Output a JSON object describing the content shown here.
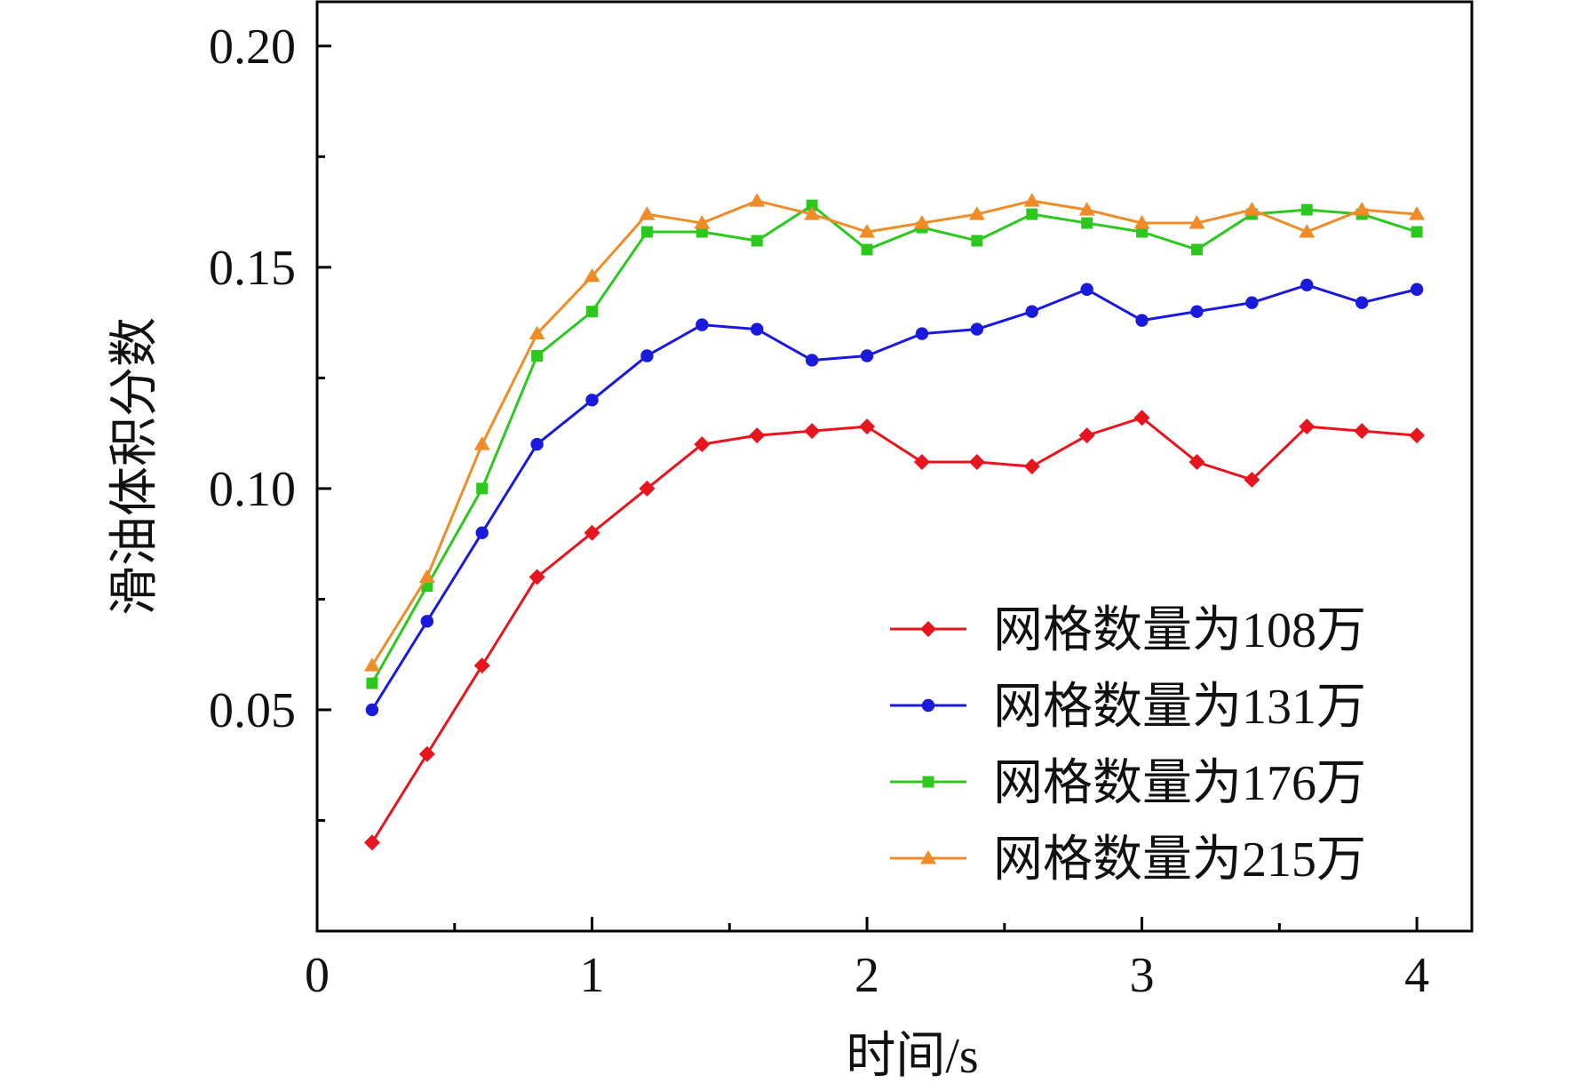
{
  "chart_data": {
    "type": "line",
    "title": "",
    "xlabel": "时间/s",
    "ylabel": "滑油体积分数",
    "xlim": [
      0,
      4.2
    ],
    "ylim": [
      0,
      0.21
    ],
    "x_ticks": [
      0,
      1,
      2,
      3,
      4
    ],
    "x_tick_labels": [
      "0",
      "1",
      "2",
      "3",
      "4"
    ],
    "x_minor_ticks": [
      0.5,
      1.5,
      2.5,
      3.5
    ],
    "y_ticks": [
      0.05,
      0.1,
      0.15,
      0.2
    ],
    "y_tick_labels": [
      "0.05",
      "0.10",
      "0.15",
      "0.20"
    ],
    "y_minor_ticks": [
      0.025,
      0.075,
      0.125,
      0.175
    ],
    "grid": false,
    "legend_position": "bottom-right",
    "x": [
      0.2,
      0.4,
      0.6,
      0.8,
      1.0,
      1.2,
      1.4,
      1.6,
      1.8,
      2.0,
      2.2,
      2.4,
      2.6,
      2.8,
      3.0,
      3.2,
      3.4,
      3.6,
      3.8,
      4.0
    ],
    "series": [
      {
        "name": "网格数量为108万",
        "color": "#e8141e",
        "marker": "diamond",
        "values": [
          0.02,
          0.04,
          0.06,
          0.08,
          0.09,
          0.1,
          0.11,
          0.112,
          0.113,
          0.114,
          0.106,
          0.106,
          0.105,
          0.112,
          0.116,
          0.106,
          0.102,
          0.114,
          0.113,
          0.112
        ]
      },
      {
        "name": "网格数量为131万",
        "color": "#1a1adc",
        "marker": "circle",
        "values": [
          0.05,
          0.07,
          0.09,
          0.11,
          0.12,
          0.13,
          0.137,
          0.136,
          0.129,
          0.13,
          0.135,
          0.136,
          0.14,
          0.145,
          0.138,
          0.14,
          0.142,
          0.146,
          0.142,
          0.145
        ]
      },
      {
        "name": "网格数量为176万",
        "color": "#2cc81e",
        "marker": "square",
        "values": [
          0.056,
          0.078,
          0.1,
          0.13,
          0.14,
          0.158,
          0.158,
          0.156,
          0.164,
          0.154,
          0.159,
          0.156,
          0.162,
          0.16,
          0.158,
          0.154,
          0.162,
          0.163,
          0.162,
          0.158
        ]
      },
      {
        "name": "网格数量为215万",
        "color": "#f08c28",
        "marker": "triangle",
        "values": [
          0.06,
          0.08,
          0.11,
          0.135,
          0.148,
          0.162,
          0.16,
          0.165,
          0.162,
          0.158,
          0.16,
          0.162,
          0.165,
          0.163,
          0.16,
          0.16,
          0.163,
          0.158,
          0.163,
          0.162
        ]
      }
    ]
  }
}
